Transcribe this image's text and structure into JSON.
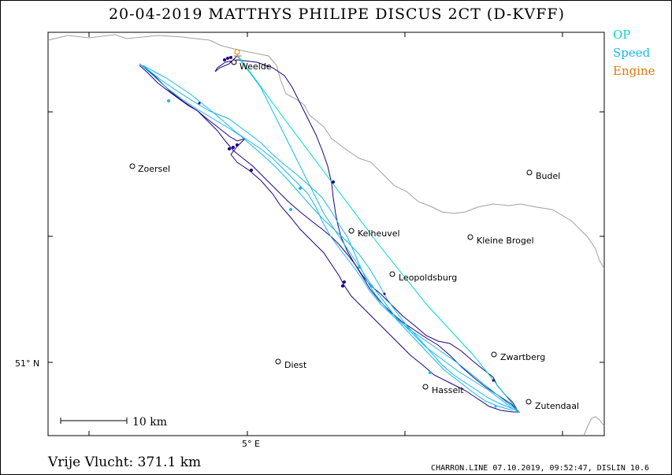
{
  "title": "20-04-2019   MATTHYS PHILIPE   DISCUS 2CT (D-KVFF)",
  "legend": {
    "op": {
      "label": "OP",
      "color": "#00d8c8"
    },
    "speed": {
      "label": "Speed",
      "color": "#18b8e8"
    },
    "engine": {
      "label": "Engine",
      "color": "#e07810"
    }
  },
  "track_color": "#200080",
  "axis": {
    "lat_label": "51° N",
    "lon_label": "5° E"
  },
  "scale_bar": {
    "label": "10  km"
  },
  "distance": "Vrije Vlucht:  371.1 km",
  "footer": "CHARRON.LINE 07.10.2019, 09:52:47, DISLIN 10.6",
  "places": [
    {
      "name": "Weelde"
    },
    {
      "name": "Zoersel"
    },
    {
      "name": "Budel"
    },
    {
      "name": "Kelheuvel"
    },
    {
      "name": "Kleine Brogel"
    },
    {
      "name": "Leopoldsburg"
    },
    {
      "name": "Diest"
    },
    {
      "name": "Zwartberg"
    },
    {
      "name": "Hasselt"
    },
    {
      "name": "Zutendaal"
    }
  ]
}
